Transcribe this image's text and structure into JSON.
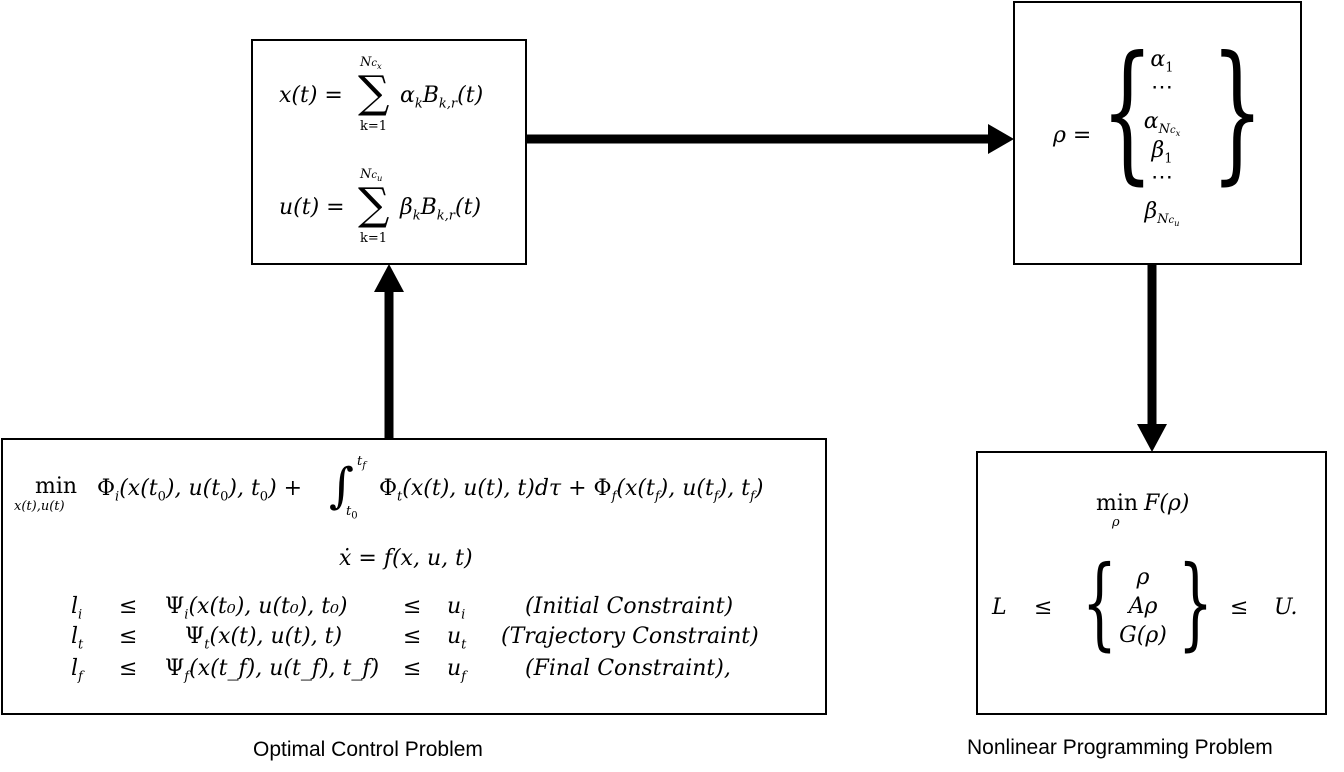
{
  "captions": {
    "ocp": "Optimal Control Problem",
    "nlp": "Nonlinear Programming Problem"
  },
  "param_box": {
    "x_lhs": "x(t) =",
    "x_term": "α",
    "x_basis": "B",
    "u_lhs": "u(t) =",
    "u_term": "β",
    "u_basis": "B",
    "sum_lower": "k=1",
    "x_upper": "N",
    "u_upper": "N"
  },
  "rho_box": {
    "lhs": "ρ =",
    "items": [
      "α",
      "⋯",
      "α",
      "β",
      "⋯",
      "β"
    ]
  },
  "nlp_box": {
    "objective_min": "min",
    "objective_sub": "ρ",
    "objective_fn": "F(ρ)",
    "lower": "L",
    "leq": "≤",
    "upper": "U.",
    "items": [
      "ρ",
      "Aρ",
      "G(ρ)"
    ]
  },
  "ocp_box": {
    "min": "min",
    "min_sub": "x(t),u(t)",
    "dynamics": "ẋ = f(x, u, t)",
    "constraints": [
      {
        "lower": "l",
        "sub": "i",
        "psi_sub": "i",
        "args": "(x(t₀), u(t₀), t₀)",
        "upper": "u",
        "usub": "i",
        "label": "(Initial Constraint)"
      },
      {
        "lower": "l",
        "sub": "t",
        "psi_sub": "t",
        "args": "(x(t), u(t), t)",
        "upper": "u",
        "usub": "t",
        "label": "(Trajectory Constraint)"
      },
      {
        "lower": "l",
        "sub": "f",
        "psi_sub": "f",
        "args": "(x(t_f), u(t_f), t_f)",
        "upper": "u",
        "usub": "f",
        "label": "(Final Constraint),"
      }
    ]
  }
}
